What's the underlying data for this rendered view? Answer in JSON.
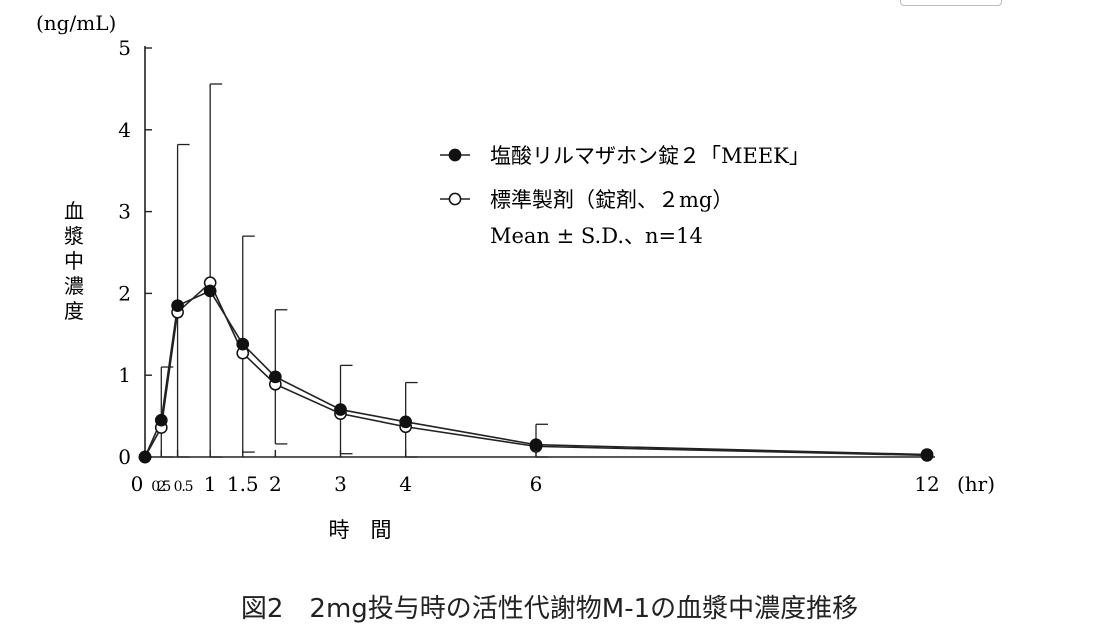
{
  "chart_data": {
    "type": "line",
    "unit_label": "(ng/mL)",
    "ylabel": "血漿中濃度",
    "xlabel": "時　間",
    "x_unit": "(hr)",
    "xlim": [
      0,
      12
    ],
    "ylim": [
      0,
      5
    ],
    "y_ticks": [
      0,
      1,
      2,
      3,
      4,
      5
    ],
    "x_ticks": [
      {
        "v": 0,
        "label": "0"
      },
      {
        "v": 0.25,
        "label": "0.25"
      },
      {
        "v": 0.5,
        "label": "0.5"
      },
      {
        "v": 1,
        "label": "1"
      },
      {
        "v": 1.5,
        "label": "1.5"
      },
      {
        "v": 2,
        "label": "2"
      },
      {
        "v": 3,
        "label": "3"
      },
      {
        "v": 4,
        "label": "4"
      },
      {
        "v": 6,
        "label": "6"
      },
      {
        "v": 12,
        "label": "12"
      }
    ],
    "x": [
      0,
      0.25,
      0.5,
      1,
      1.5,
      2,
      3,
      4,
      6,
      12
    ],
    "series": [
      {
        "name": "塩酸リルマザホン錠２「MEEK」",
        "marker": "filled",
        "values": [
          0,
          0.45,
          1.85,
          2.03,
          1.38,
          0.98,
          0.58,
          0.43,
          0.15,
          0.03
        ],
        "sd": [
          0,
          0.65,
          1.97,
          2.53,
          1.32,
          0.82,
          0.54,
          0.48,
          0.25,
          0.0
        ]
      },
      {
        "name": "標準製剤（錠剤、２mg）",
        "marker": "open",
        "values": [
          0,
          0.36,
          1.77,
          2.13,
          1.27,
          0.89,
          0.53,
          0.37,
          0.13,
          0.02
        ],
        "sd": [
          0,
          0.0,
          0.0,
          0.0,
          0.0,
          0.0,
          0.0,
          0.0,
          0.0,
          0.0
        ]
      }
    ],
    "legend_note": "Mean ± S.D.、n=14",
    "caption": "図2　2mg投与時の活性代謝物M-1の血漿中濃度推移",
    "legend_position": "upper-right"
  }
}
